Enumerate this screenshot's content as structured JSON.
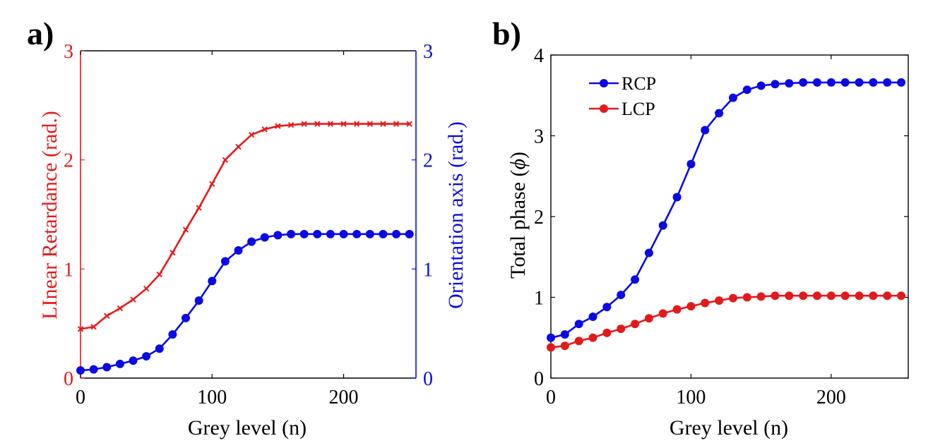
{
  "chart_data": [
    {
      "panel_label": "a)",
      "type": "line",
      "title": "",
      "xlabel": "Grey level (n)",
      "xlim": [
        0,
        255
      ],
      "xticks": [
        0,
        100,
        200
      ],
      "xtick_labels": [
        "0",
        "100",
        "200"
      ],
      "grid": false,
      "left_axis": {
        "label": "LInear Retardance (rad.)",
        "color": "#e31a1c",
        "ylim": [
          0,
          3
        ],
        "ticks": [
          0,
          1,
          2,
          3
        ],
        "tick_labels": [
          "0",
          "1",
          "2",
          "3"
        ]
      },
      "right_axis": {
        "label": "Orientation axis (rad.)",
        "color": "#0a0ae6",
        "ylim": [
          0,
          3
        ],
        "ticks": [
          0,
          1,
          2,
          3
        ],
        "tick_labels": [
          "0",
          "1",
          "2",
          "3"
        ]
      },
      "x": [
        0,
        10,
        20,
        30,
        40,
        50,
        60,
        70,
        80,
        90,
        100,
        110,
        120,
        130,
        140,
        150,
        160,
        170,
        180,
        190,
        200,
        210,
        220,
        230,
        240,
        250
      ],
      "series": [
        {
          "name": "Linear Retardance",
          "axis": "left",
          "marker": "x",
          "color": "#e31a1c",
          "values": [
            0.45,
            0.47,
            0.57,
            0.64,
            0.72,
            0.82,
            0.95,
            1.15,
            1.36,
            1.56,
            1.78,
            2.0,
            2.12,
            2.23,
            2.28,
            2.31,
            2.32,
            2.33,
            2.33,
            2.33,
            2.33,
            2.33,
            2.33,
            2.33,
            2.33,
            2.33
          ]
        },
        {
          "name": "Orientation axis",
          "axis": "right",
          "marker": "o",
          "color": "#0a0ae6",
          "values": [
            0.07,
            0.08,
            0.1,
            0.13,
            0.16,
            0.2,
            0.27,
            0.4,
            0.55,
            0.71,
            0.89,
            1.07,
            1.17,
            1.25,
            1.29,
            1.31,
            1.32,
            1.32,
            1.32,
            1.32,
            1.32,
            1.32,
            1.32,
            1.32,
            1.32,
            1.32
          ]
        }
      ]
    },
    {
      "panel_label": "b)",
      "type": "line",
      "title": "",
      "xlabel": "Grey level (n)",
      "ylabel": "Total phase (",
      "ylabel_symbol": "ϕ",
      "ylabel_close": ")",
      "xlim": [
        0,
        255
      ],
      "ylim": [
        0,
        4
      ],
      "xticks": [
        0,
        100,
        200
      ],
      "xtick_labels": [
        "0",
        "100",
        "200"
      ],
      "yticks": [
        0,
        1,
        2,
        3,
        4
      ],
      "ytick_labels": [
        "0",
        "1",
        "2",
        "3",
        "4"
      ],
      "grid": false,
      "legend": "top-left",
      "x": [
        0,
        10,
        20,
        30,
        40,
        50,
        60,
        70,
        80,
        90,
        100,
        110,
        120,
        130,
        140,
        150,
        160,
        170,
        180,
        190,
        200,
        210,
        220,
        230,
        240,
        250
      ],
      "series": [
        {
          "name": "RCP",
          "marker": "o",
          "color": "#0a0ae6",
          "values": [
            0.5,
            0.54,
            0.67,
            0.76,
            0.88,
            1.03,
            1.22,
            1.55,
            1.89,
            2.24,
            2.65,
            3.07,
            3.28,
            3.47,
            3.57,
            3.62,
            3.64,
            3.65,
            3.66,
            3.66,
            3.66,
            3.66,
            3.66,
            3.66,
            3.66,
            3.66
          ]
        },
        {
          "name": "LCP",
          "marker": "o",
          "color": "#e31a1c",
          "values": [
            0.38,
            0.4,
            0.46,
            0.5,
            0.56,
            0.61,
            0.67,
            0.74,
            0.8,
            0.85,
            0.89,
            0.93,
            0.96,
            0.99,
            1.0,
            1.01,
            1.02,
            1.02,
            1.02,
            1.02,
            1.02,
            1.02,
            1.02,
            1.02,
            1.02,
            1.02
          ]
        }
      ]
    }
  ]
}
